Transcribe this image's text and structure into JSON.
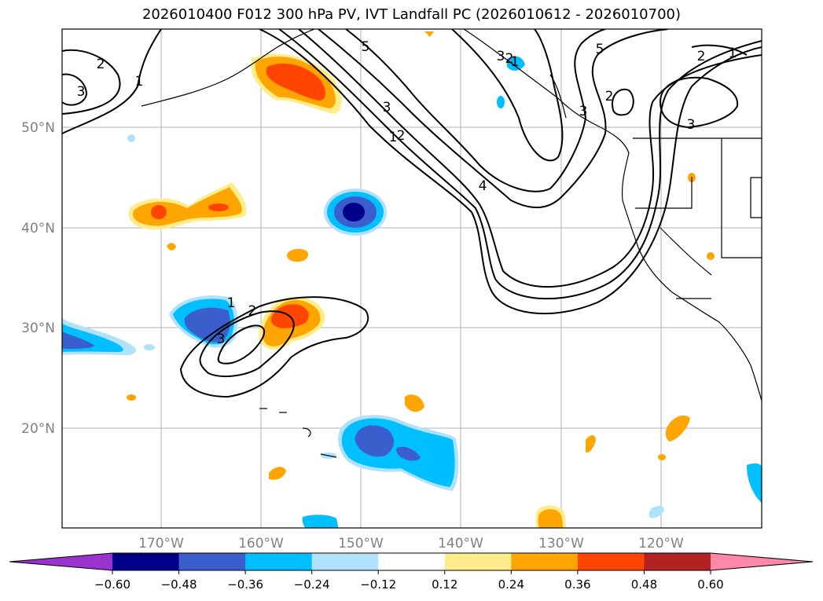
{
  "title": "2026010400 F012 300 hPa PV, IVT Landfall PC (2026010612 - 2026010700)",
  "map": {
    "lat_labels": [
      "50°N",
      "40°N",
      "30°N",
      "20°N"
    ],
    "lon_labels": [
      "170°W",
      "160°W",
      "150°W",
      "140°W",
      "130°W",
      "120°W"
    ],
    "contour_labels": [
      "2",
      "3",
      "1",
      "1",
      "3",
      "2",
      "5",
      "3",
      "1",
      "2",
      "4",
      "5",
      "2",
      "1",
      "2",
      "3",
      "3",
      "1",
      "2",
      "3"
    ],
    "colors": {
      "axis_label": "#808080",
      "grid": "#b0b0b0",
      "contour": "#000000"
    }
  },
  "colorbar": {
    "levels": [
      -0.6,
      -0.48,
      -0.36,
      -0.24,
      -0.12,
      0.12,
      0.24,
      0.36,
      0.48,
      0.6
    ],
    "tick_labels": [
      "−0.60",
      "−0.48",
      "−0.36",
      "−0.24",
      "−0.12",
      "0.12",
      "0.24",
      "0.36",
      "0.48",
      "0.60"
    ],
    "colors": [
      "#9a32cd",
      "#00008b",
      "#3a5fcd",
      "#00bfff",
      "#b0e2ff",
      "#ffffff",
      "#ffec8b",
      "#ffa500",
      "#ff4500",
      "#b22222",
      "#ff88aa"
    ]
  }
}
